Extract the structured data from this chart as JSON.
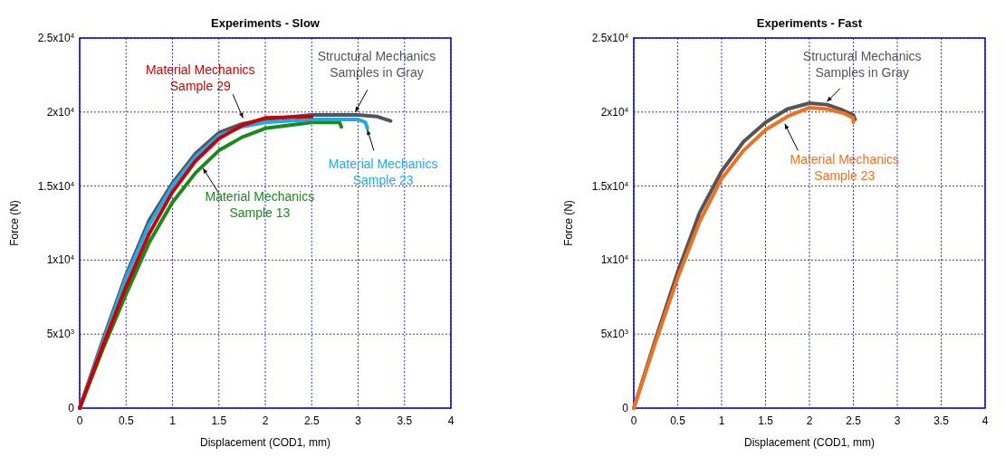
{
  "chart_data": [
    {
      "type": "line",
      "title": "Experiments - Slow",
      "xlabel": "Displacement (COD1, mm)",
      "ylabel": "Force (N)",
      "xlim": [
        0,
        4
      ],
      "ylim": [
        0,
        25000
      ],
      "xticks": [
        0,
        0.5,
        1,
        1.5,
        2,
        2.5,
        3,
        3.5,
        4
      ],
      "yticks": [
        {
          "value": 0,
          "label": "0"
        },
        {
          "value": 5000,
          "label": "5x10$^{3}$"
        },
        {
          "value": 10000,
          "label": "1x10$^{4}$"
        },
        {
          "value": 15000,
          "label": "1.5x10$^{4}$"
        },
        {
          "value": 20000,
          "label": "2x10$^{4}$"
        },
        {
          "value": 25000,
          "label": "2.5x10$^{4}$"
        }
      ],
      "grid": true,
      "line_style": "solid",
      "marker": "none",
      "series": [
        {
          "name": "Structural Mechanics Samples in Gray",
          "color": "#555555",
          "x": [
            0,
            0.25,
            0.5,
            0.75,
            1,
            1.25,
            1.5,
            1.75,
            2,
            2.5,
            3,
            3.2,
            3.35
          ],
          "values": [
            0,
            4600,
            9000,
            12700,
            15200,
            17200,
            18600,
            19200,
            19500,
            19800,
            19800,
            19700,
            19400
          ]
        },
        {
          "name": "Material Mechanics Sample 13",
          "color": "#1a8a1a",
          "x": [
            0,
            0.25,
            0.5,
            0.75,
            1,
            1.25,
            1.5,
            1.75,
            2,
            2.5,
            2.8,
            2.82
          ],
          "values": [
            0,
            4000,
            7700,
            11200,
            13900,
            15900,
            17400,
            18300,
            18900,
            19300,
            19300,
            19000
          ]
        },
        {
          "name": "Material Mechanics Sample 23",
          "color": "#1eaaee",
          "x": [
            0,
            0.25,
            0.5,
            0.75,
            1,
            1.25,
            1.5,
            1.75,
            2,
            2.5,
            3,
            3.08,
            3.1
          ],
          "values": [
            0,
            4400,
            8800,
            12400,
            15000,
            17000,
            18400,
            19000,
            19300,
            19500,
            19500,
            19300,
            18900
          ]
        },
        {
          "name": "Material Mechanics Sample 29",
          "color": "#cc0000",
          "x": [
            0,
            0.25,
            0.5,
            0.75,
            1,
            1.25,
            1.5,
            1.75,
            2,
            2.5
          ],
          "values": [
            0,
            4200,
            8200,
            11800,
            14600,
            16700,
            18200,
            19100,
            19600,
            19700
          ]
        }
      ]
    },
    {
      "type": "line",
      "title": "Experiments - Fast",
      "xlabel": "Displacement (COD1, mm)",
      "ylabel": "Force (N)",
      "xlim": [
        0,
        4
      ],
      "ylim": [
        0,
        25000
      ],
      "xticks": [
        0,
        0.5,
        1,
        1.5,
        2,
        2.5,
        3,
        3.5,
        4
      ],
      "yticks": [
        {
          "value": 0,
          "label": "0"
        },
        {
          "value": 5000,
          "label": "5x10$^{3}$"
        },
        {
          "value": 10000,
          "label": "1x10$^{4}$"
        },
        {
          "value": 15000,
          "label": "1.5x10$^{4}$"
        },
        {
          "value": 20000,
          "label": "2x10$^{4}$"
        },
        {
          "value": 25000,
          "label": "2.5x10$^{4}$"
        }
      ],
      "grid": true,
      "line_style": "solid",
      "marker": "none",
      "series": [
        {
          "name": "Structural Mechanics Samples in Gray",
          "color": "#555555",
          "x": [
            0,
            0.25,
            0.5,
            0.75,
            1,
            1.25,
            1.5,
            1.75,
            2,
            2.2,
            2.35,
            2.5,
            2.52
          ],
          "values": [
            0,
            4700,
            9200,
            13200,
            16000,
            18000,
            19300,
            20200,
            20600,
            20500,
            20200,
            19800,
            19500
          ]
        },
        {
          "name": "Material Mechanics Sample 23",
          "color": "#f07020",
          "x": [
            0,
            0.25,
            0.5,
            0.75,
            1,
            1.25,
            1.5,
            1.75,
            2,
            2.2,
            2.4,
            2.5,
            2.5
          ],
          "values": [
            0,
            4500,
            8800,
            12600,
            15500,
            17400,
            18800,
            19700,
            20300,
            20200,
            19900,
            19600,
            19300
          ]
        }
      ]
    }
  ]
}
